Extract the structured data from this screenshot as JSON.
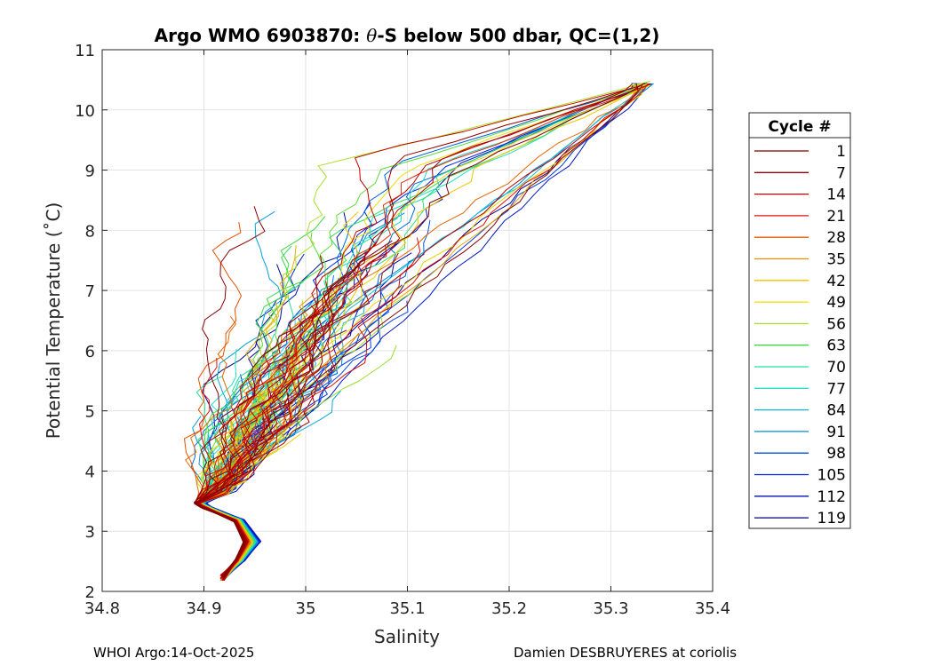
{
  "chart_data": {
    "type": "line",
    "title": "Argo WMO 6903870: θ-S below 500 dbar,  QC=(1,2)",
    "title_prefix": "Argo WMO 6903870: ",
    "title_theta": "θ",
    "title_suffix": "-S below 500 dbar,  QC=(1,2)",
    "xlabel": "Salinity",
    "ylabel": "Potential Temperature (˚C)",
    "xlim": [
      34.8,
      35.4
    ],
    "ylim": [
      2,
      11
    ],
    "xticks": [
      "34.8",
      "34.9",
      "35",
      "35.1",
      "35.2",
      "35.3",
      "35.4"
    ],
    "yticks": [
      "2",
      "3",
      "4",
      "5",
      "6",
      "7",
      "8",
      "9",
      "10",
      "11"
    ],
    "grid": true,
    "legend_title": "Cycle #",
    "legend_position": "outside-right",
    "legend": [
      {
        "label": "1",
        "color": "#800000"
      },
      {
        "label": "7",
        "color": "#9a0000"
      },
      {
        "label": "14",
        "color": "#c00000"
      },
      {
        "label": "21",
        "color": "#e01010"
      },
      {
        "label": "28",
        "color": "#e85a00"
      },
      {
        "label": "35",
        "color": "#e89000"
      },
      {
        "label": "42",
        "color": "#f0c000"
      },
      {
        "label": "49",
        "color": "#e8e000"
      },
      {
        "label": "56",
        "color": "#a8e028"
      },
      {
        "label": "63",
        "color": "#40d840"
      },
      {
        "label": "70",
        "color": "#20e0a0"
      },
      {
        "label": "77",
        "color": "#20e0d0"
      },
      {
        "label": "84",
        "color": "#10b8d8"
      },
      {
        "label": "91",
        "color": "#0090d8"
      },
      {
        "label": "98",
        "color": "#0050e0"
      },
      {
        "label": "105",
        "color": "#0020e0"
      },
      {
        "label": "112",
        "color": "#0010b8"
      },
      {
        "label": "119",
        "color": "#000088"
      }
    ],
    "series_shape": {
      "deep_tail": [
        [
          34.918,
          2.2
        ],
        [
          34.935,
          2.55
        ],
        [
          34.945,
          2.85
        ],
        [
          34.935,
          3.2
        ],
        [
          34.915,
          3.42
        ],
        [
          34.905,
          3.55
        ]
      ],
      "upper_anchor": [
        35.34,
        10.45
      ],
      "hook_outer_salinity_warm": 34.955,
      "hook_outer_salinity_cold": 34.94
    }
  },
  "footer": {
    "left": "WHOI Argo:14-Oct-2025",
    "right": "Damien DESBRUYERES at coriolis"
  }
}
